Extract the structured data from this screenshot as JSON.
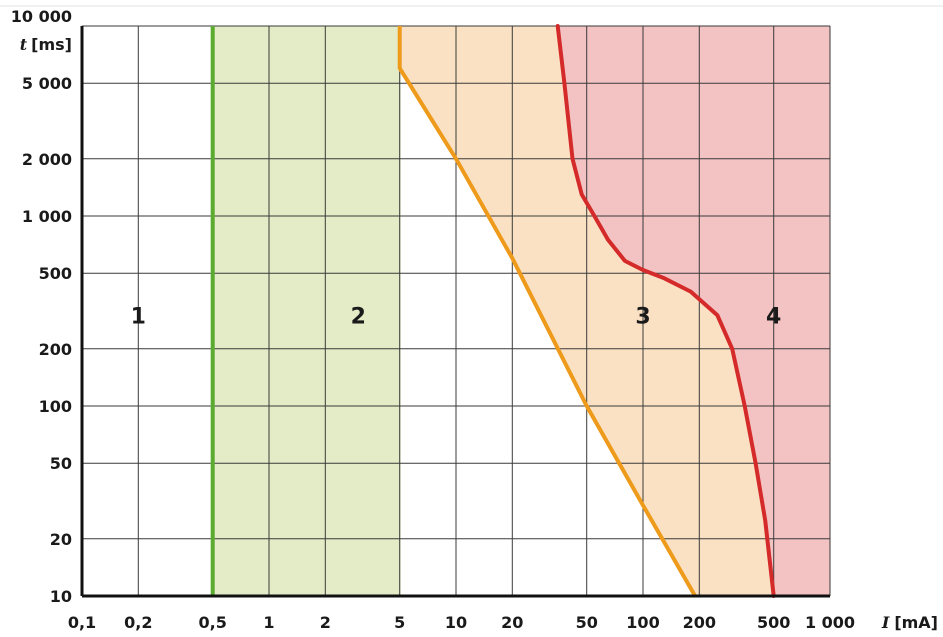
{
  "chart_data": {
    "type": "area",
    "x_scale": "log",
    "y_scale": "log",
    "xlim": [
      0.1,
      1000
    ],
    "ylim": [
      10,
      10000
    ],
    "grid": true,
    "xlabel": {
      "symbol": "I",
      "unit": "[mA]"
    },
    "ylabel": {
      "symbol": "t",
      "unit": "[ms]"
    },
    "x_ticks": [
      {
        "value": 0.1,
        "label": "0,1"
      },
      {
        "value": 0.2,
        "label": "0,2"
      },
      {
        "value": 0.5,
        "label": "0,5"
      },
      {
        "value": 1,
        "label": "1"
      },
      {
        "value": 2,
        "label": "2"
      },
      {
        "value": 5,
        "label": "5"
      },
      {
        "value": 10,
        "label": "10"
      },
      {
        "value": 20,
        "label": "20"
      },
      {
        "value": 50,
        "label": "50"
      },
      {
        "value": 100,
        "label": "100"
      },
      {
        "value": 200,
        "label": "200"
      },
      {
        "value": 500,
        "label": "500"
      },
      {
        "value": 1000,
        "label": "1 000"
      }
    ],
    "y_ticks": [
      {
        "value": 10,
        "label": "10"
      },
      {
        "value": 20,
        "label": "20"
      },
      {
        "value": 50,
        "label": "50"
      },
      {
        "value": 100,
        "label": "100"
      },
      {
        "value": 200,
        "label": "200"
      },
      {
        "value": 500,
        "label": "500"
      },
      {
        "value": 1000,
        "label": "1 000"
      },
      {
        "value": 2000,
        "label": "2 000"
      },
      {
        "value": 5000,
        "label": "5 000"
      },
      {
        "value": 10000,
        "label": "10 000"
      }
    ],
    "zones": [
      {
        "label": "1",
        "color": "#ffffff",
        "label_at": [
          0.2,
          300
        ]
      },
      {
        "label": "2",
        "color": "#e3ecc6",
        "label_at": [
          3,
          300
        ]
      },
      {
        "label": "3",
        "color": "#fbe1c4",
        "label_at": [
          100,
          300
        ]
      },
      {
        "label": "4",
        "color": "#f3c3c3",
        "label_at": [
          500,
          300
        ]
      }
    ],
    "series": [
      {
        "color": "#5aab2f",
        "points": [
          [
            0.5,
            10
          ],
          [
            0.5,
            10000
          ]
        ]
      },
      {
        "color": "#ee9a1b",
        "points": [
          [
            5,
            10000
          ],
          [
            5,
            6000
          ],
          [
            10,
            2000
          ],
          [
            20,
            600
          ],
          [
            50,
            100
          ],
          [
            100,
            30
          ],
          [
            190,
            10
          ]
        ]
      },
      {
        "color": "#d42a2a",
        "points": [
          [
            35,
            10000
          ],
          [
            38,
            5000
          ],
          [
            42,
            2000
          ],
          [
            47,
            1300
          ],
          [
            55,
            1000
          ],
          [
            65,
            750
          ],
          [
            80,
            580
          ],
          [
            100,
            520
          ],
          [
            130,
            470
          ],
          [
            180,
            400
          ],
          [
            250,
            300
          ],
          [
            300,
            200
          ],
          [
            350,
            100
          ],
          [
            400,
            50
          ],
          [
            450,
            25
          ],
          [
            500,
            10
          ]
        ]
      }
    ]
  }
}
